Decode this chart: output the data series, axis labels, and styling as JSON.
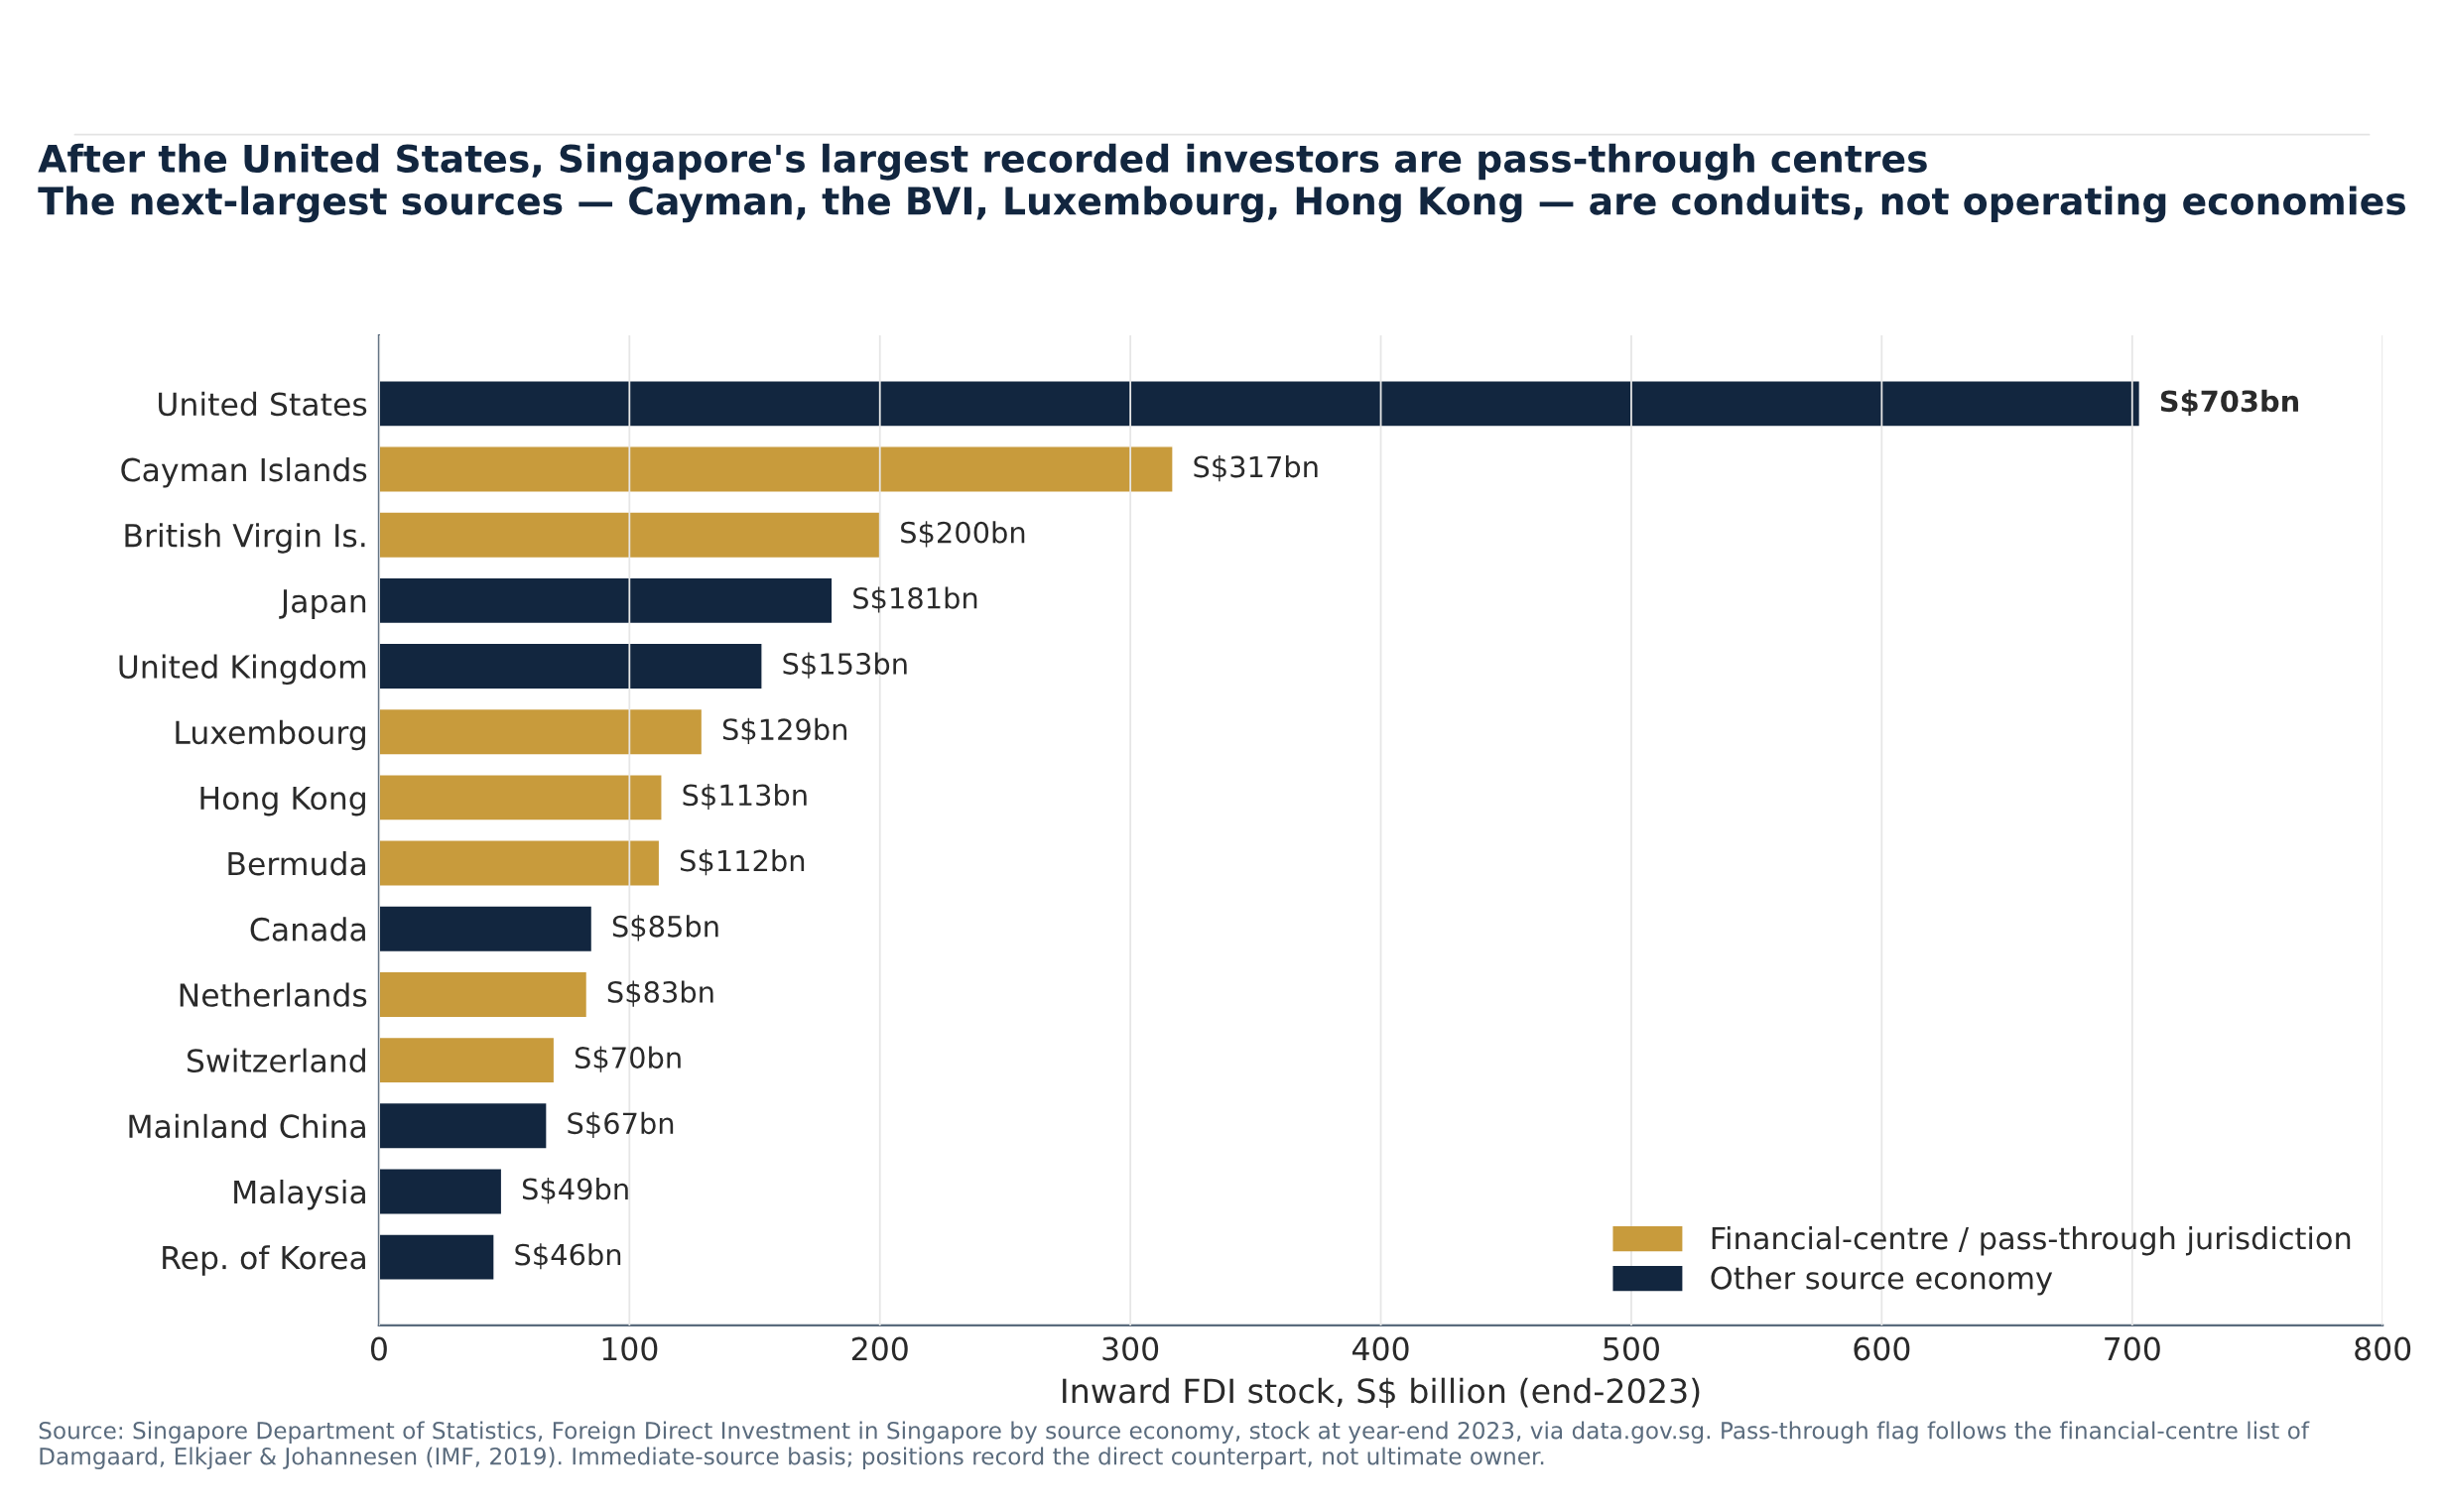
{
  "chart_data": {
    "type": "bar",
    "orientation": "horizontal",
    "title": "After the United States, Singapore's largest recorded investors are pass-through centres",
    "subtitle": "The next-largest sources — Cayman, the BVI, Luxembourg, Hong Kong — are conduits, not operating economies",
    "xlabel": "Inward FDI stock, S$ billion (end-2023)",
    "categories": [
      "United States",
      "Cayman Islands",
      "British Virgin Is.",
      "Japan",
      "United Kingdom",
      "Luxembourg",
      "Hong Kong",
      "Bermuda",
      "Canada",
      "Netherlands",
      "Switzerland",
      "Mainland China",
      "Malaysia",
      "Rep. of Korea"
    ],
    "series": [
      {
        "name": "Financial-centre / pass-through jurisdiction",
        "color": "#c89b3c",
        "values": [
          null,
          317,
          200,
          null,
          null,
          129,
          113,
          112,
          null,
          83,
          70,
          null,
          null,
          null
        ],
        "value_labels": [
          null,
          "S$317bn",
          "S$200bn",
          null,
          null,
          "S$129bn",
          "S$113bn",
          "S$112bn",
          null,
          "S$83bn",
          "S$70bn",
          null,
          null,
          null
        ]
      },
      {
        "name": "Other source economy",
        "color": "#12263f",
        "values": [
          703,
          null,
          null,
          181,
          153,
          null,
          null,
          null,
          85,
          null,
          null,
          67,
          49,
          46
        ],
        "value_labels": [
          "S$703bn",
          null,
          null,
          "S$181bn",
          "S$153bn",
          null,
          null,
          null,
          "S$85bn",
          null,
          null,
          "S$67bn",
          "S$49bn",
          "S$46bn"
        ]
      }
    ],
    "xlim": [
      0,
      800
    ],
    "xticks": [
      0,
      100,
      200,
      300,
      400,
      500,
      600,
      700,
      800
    ],
    "grid": "x",
    "legend": "bottom right",
    "annotations": [
      "Source: Singapore Department of Statistics, Foreign Direct Investment in Singapore by source economy, stock at year-end 2023, via data.gov.sg. Pass-through flag follows the financial-centre list of Damgaard, Elkjaer & Johannesen (IMF, 2019). Immediate-source basis; positions record the direct counterpart, not ultimate owner."
    ]
  }
}
